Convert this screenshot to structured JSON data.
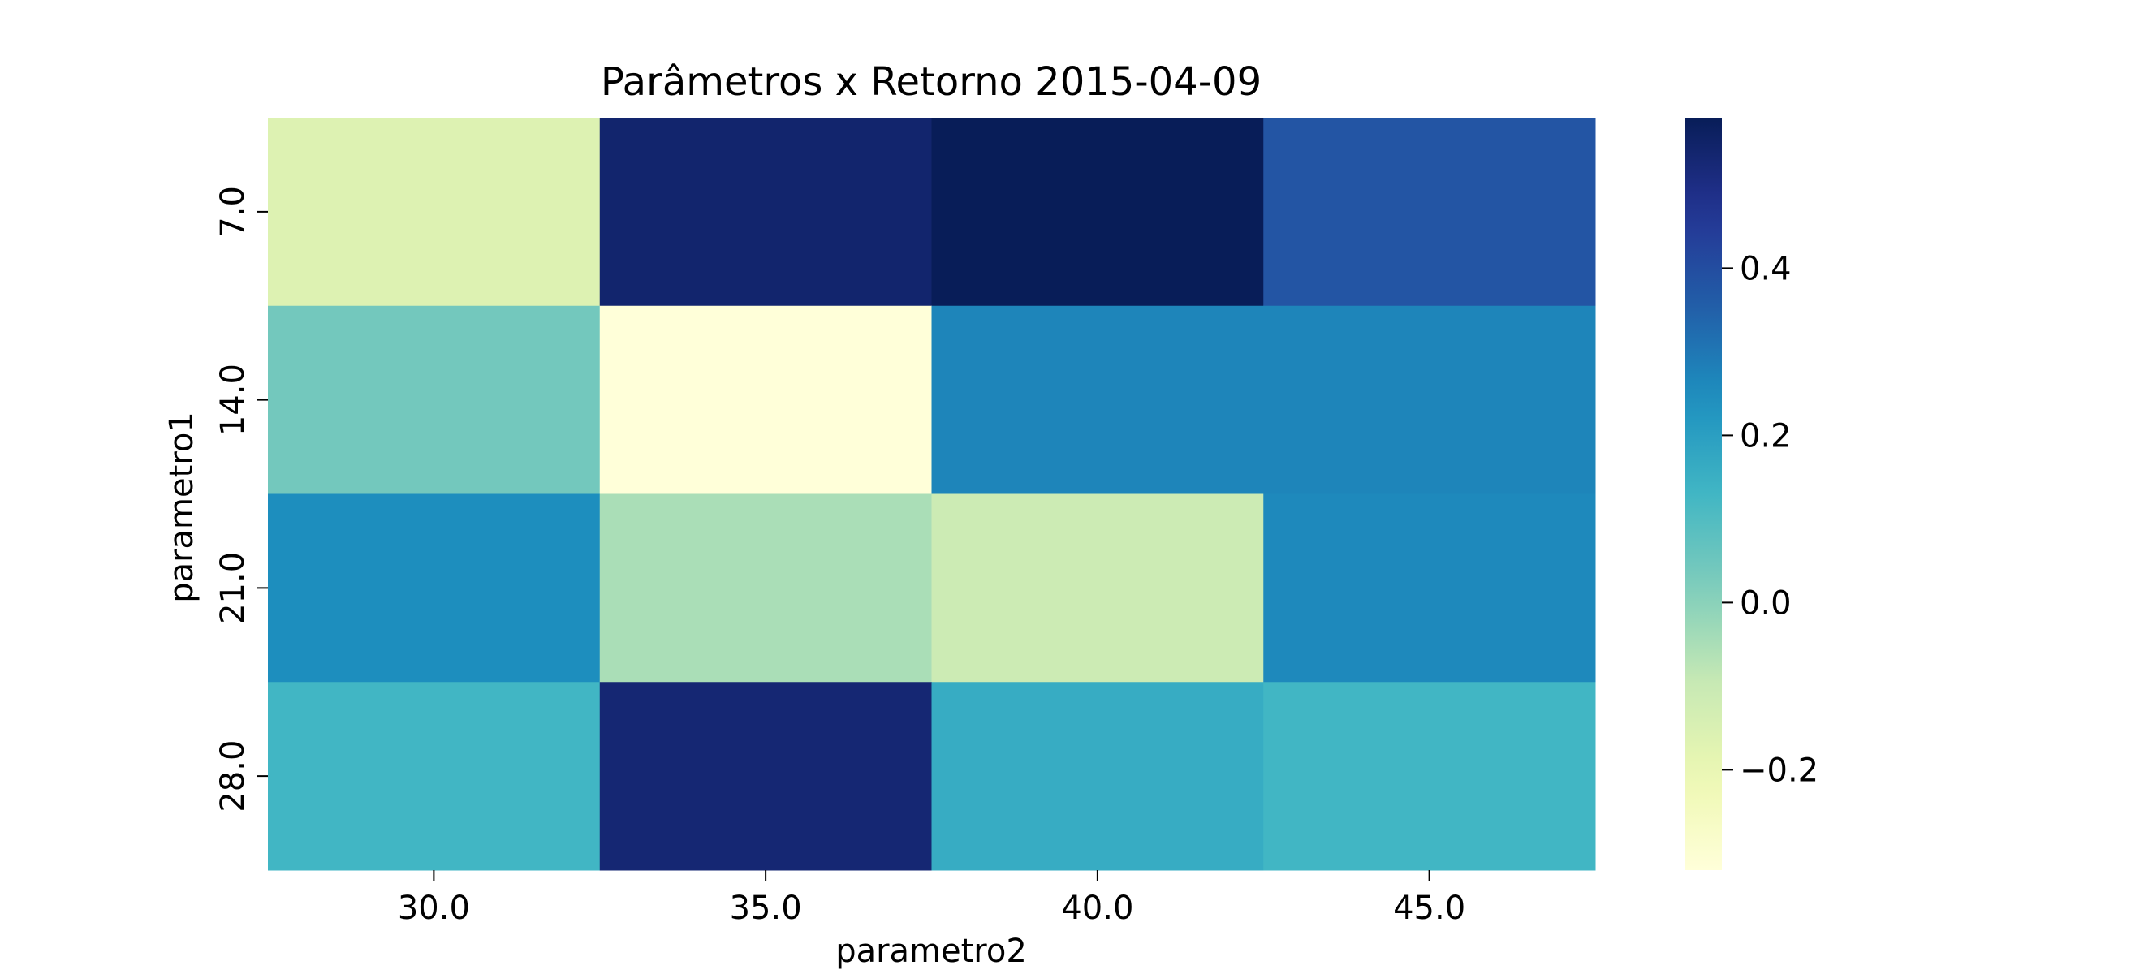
{
  "chart_data": {
    "type": "heatmap",
    "title": "Parâmetros x Retorno 2015-04-09",
    "xlabel": "parametro2",
    "ylabel": "parametro1",
    "x_categories": [
      "30.0",
      "35.0",
      "40.0",
      "45.0"
    ],
    "y_categories": [
      "7.0",
      "14.0",
      "21.0",
      "28.0"
    ],
    "values": [
      [
        -0.16,
        0.54,
        0.58,
        0.38
      ],
      [
        0.04,
        -0.32,
        0.27,
        0.27
      ],
      [
        0.25,
        -0.05,
        -0.11,
        0.26
      ],
      [
        0.13,
        0.53,
        0.16,
        0.13
      ]
    ],
    "colormap": "YlGnBu",
    "colorbar": {
      "range": [
        -0.32,
        0.58
      ],
      "ticks": [
        -0.2,
        0.0,
        0.2,
        0.4
      ],
      "tick_labels": [
        "−0.2",
        "0.0",
        "0.2",
        "0.4"
      ]
    },
    "grid": false
  }
}
